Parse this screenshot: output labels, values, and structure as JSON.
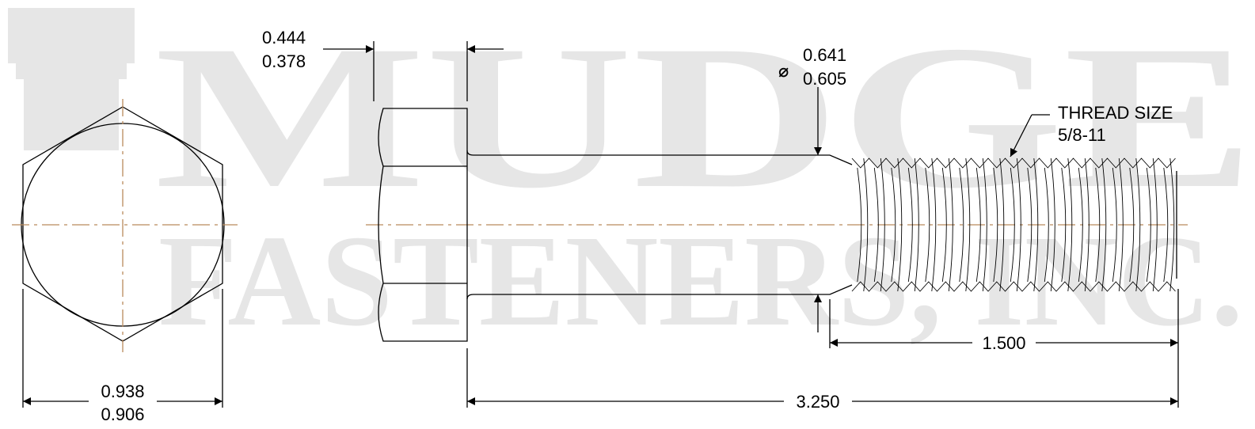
{
  "watermark": {
    "line1": "MUDGE",
    "line2": "FASTENERS, INC."
  },
  "dimensions": {
    "head_height_max": "0.444",
    "head_height_min": "0.378",
    "body_diameter_max": "0.641",
    "body_diameter_min": "0.605",
    "diameter_symbol": "⌀",
    "thread_label": "THREAD SIZE",
    "thread_size": "5/8-11",
    "thread_length": "1.500",
    "overall_length": "3.250",
    "across_flats_max": "0.938",
    "across_flats_min": "0.906"
  },
  "colors": {
    "centerline": "#b98a5c",
    "watermark": "#e6e6e6",
    "line": "#000000"
  }
}
